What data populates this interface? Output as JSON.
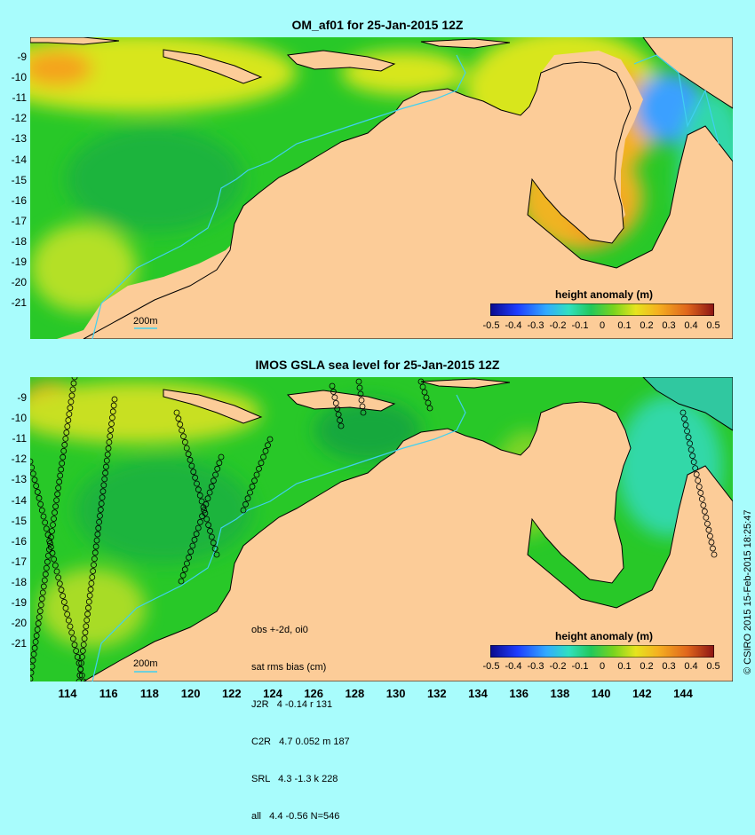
{
  "top_panel": {
    "title": "OM_af01 for 25-Jan-2015 12Z",
    "scale_label": "200m",
    "colorbar": {
      "title": "height anomaly (m)",
      "ticks": [
        "-0.5",
        "-0.4",
        "-0.3",
        "-0.2",
        "-0.1",
        "0",
        "0.1",
        "0.2",
        "0.3",
        "0.4",
        "0.5"
      ]
    }
  },
  "bottom_panel": {
    "title": "IMOS GSLA sea level  for 25-Jan-2015 12Z",
    "scale_label": "200m",
    "stats": {
      "line1": "obs +-2d, oi0",
      "line2": "sat rms bias (cm)",
      "line3": "J2R   4 -0.14 r 131",
      "line4": "C2R   4.7 0.052 m 187",
      "line5": "SRL   4.3 -1.3 k 228",
      "line6": "all   4.4 -0.56 N=546"
    },
    "colorbar": {
      "title": "height anomaly (m)",
      "ticks": [
        "-0.5",
        "-0.4",
        "-0.3",
        "-0.2",
        "-0.1",
        "0",
        "0.1",
        "0.2",
        "0.3",
        "0.4",
        "0.5"
      ]
    }
  },
  "latitude_labels": [
    "-9",
    "-10",
    "-11",
    "-12",
    "-13",
    "-14",
    "-15",
    "-16",
    "-17",
    "-18",
    "-19",
    "-20",
    "-21"
  ],
  "longitude_labels": [
    "114",
    "116",
    "118",
    "120",
    "122",
    "124",
    "126",
    "128",
    "130",
    "132",
    "134",
    "136",
    "138",
    "140",
    "142",
    "144"
  ],
  "credit": "© CSIRO 2015  15-Feb-2015 18:25:47",
  "colors": {
    "background": "#a8fcfc",
    "land": "#fccc98",
    "ocean_green": "#28c828",
    "anomaly_yellow": "#e6e41e",
    "anomaly_orange": "#f5a21a",
    "anomaly_red": "#e0661c",
    "anomaly_blue": "#3aa0ff",
    "anomaly_cyan": "#30d8a8",
    "contour_200m": "#40d0f0"
  }
}
